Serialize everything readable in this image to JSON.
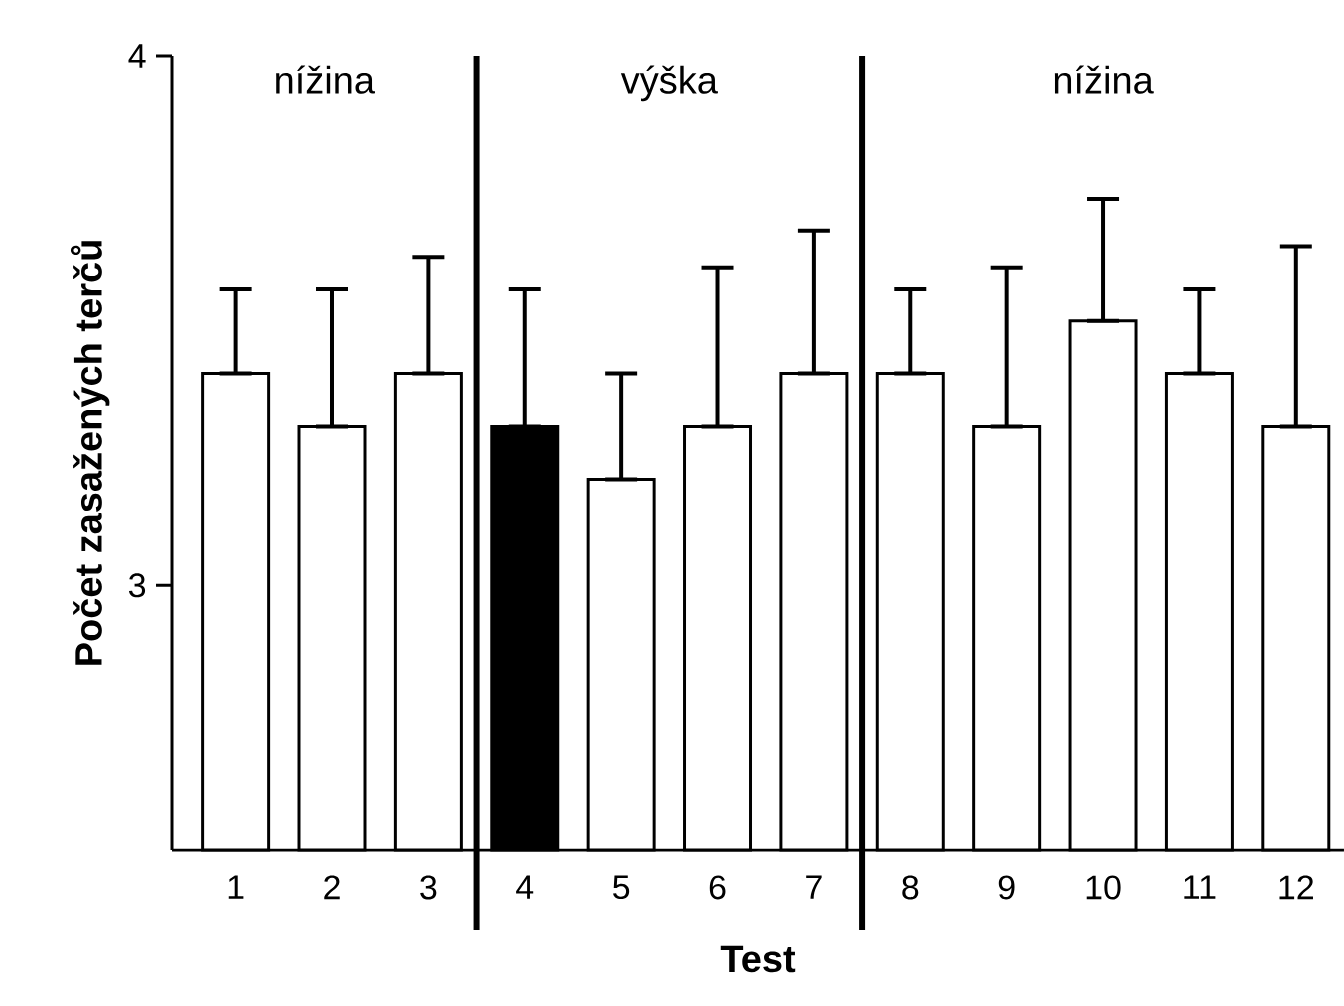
{
  "chart_data": {
    "type": "bar",
    "xlabel": "Test",
    "ylabel": "Počet zasažených terčů",
    "categories": [
      "1",
      "2",
      "3",
      "4",
      "5",
      "6",
      "7",
      "8",
      "9",
      "10",
      "11",
      "12"
    ],
    "values": [
      3.4,
      3.3,
      3.4,
      3.3,
      3.2,
      3.3,
      3.4,
      3.4,
      3.3,
      3.5,
      3.4,
      3.3
    ],
    "errors": [
      [
        3.4,
        3.56
      ],
      [
        3.3,
        3.56
      ],
      [
        3.4,
        3.62
      ],
      [
        3.3,
        3.56
      ],
      [
        3.2,
        3.4
      ],
      [
        3.3,
        3.6
      ],
      [
        3.4,
        3.67
      ],
      [
        3.4,
        3.56
      ],
      [
        3.3,
        3.6
      ],
      [
        3.5,
        3.73
      ],
      [
        3.4,
        3.56
      ],
      [
        3.3,
        3.64
      ]
    ],
    "colors": [
      "#ffffff",
      "#ffffff",
      "#ffffff",
      "#000000",
      "#ffffff",
      "#ffffff",
      "#ffffff",
      "#ffffff",
      "#ffffff",
      "#ffffff",
      "#ffffff",
      "#ffffff"
    ],
    "ylim": [
      2.5,
      4
    ],
    "yticks": [
      3,
      4
    ],
    "annotations": [
      "nížina",
      "výška",
      "nížina"
    ]
  }
}
